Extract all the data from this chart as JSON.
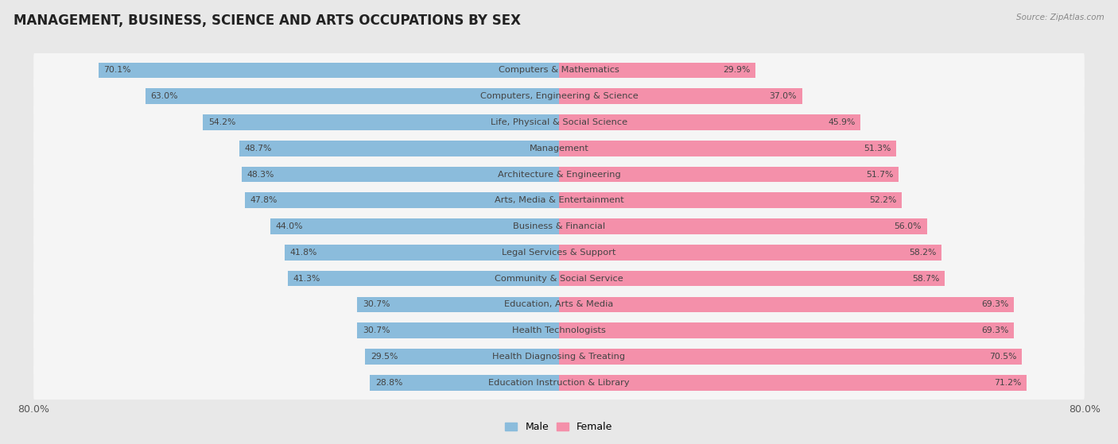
{
  "title": "MANAGEMENT, BUSINESS, SCIENCE AND ARTS OCCUPATIONS BY SEX",
  "source": "Source: ZipAtlas.com",
  "categories": [
    "Computers & Mathematics",
    "Computers, Engineering & Science",
    "Life, Physical & Social Science",
    "Management",
    "Architecture & Engineering",
    "Arts, Media & Entertainment",
    "Business & Financial",
    "Legal Services & Support",
    "Community & Social Service",
    "Education, Arts & Media",
    "Health Technologists",
    "Health Diagnosing & Treating",
    "Education Instruction & Library"
  ],
  "male_values": [
    70.1,
    63.0,
    54.2,
    48.7,
    48.3,
    47.8,
    44.0,
    41.8,
    41.3,
    30.7,
    30.7,
    29.5,
    28.8
  ],
  "female_values": [
    29.9,
    37.0,
    45.9,
    51.3,
    51.7,
    52.2,
    56.0,
    58.2,
    58.7,
    69.3,
    69.3,
    70.5,
    71.2
  ],
  "male_color": "#8BBCDC",
  "female_color": "#F490AA",
  "axis_limit": 80.0,
  "background_color": "#e8e8e8",
  "bar_background": "#f5f5f5",
  "title_fontsize": 12,
  "label_fontsize": 8.2,
  "value_fontsize": 7.8,
  "legend_fontsize": 9,
  "axis_tick_fontsize": 9
}
